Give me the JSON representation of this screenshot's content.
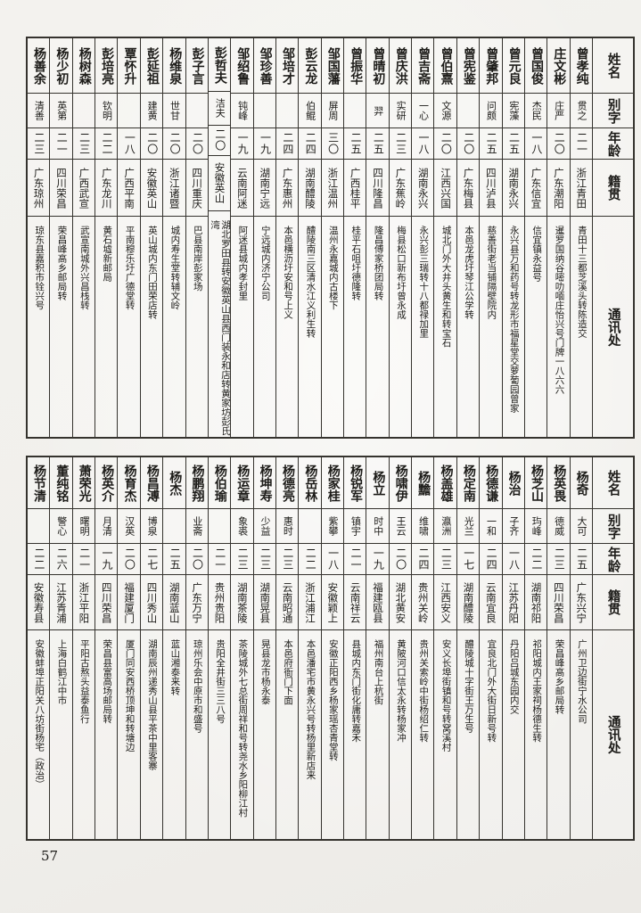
{
  "colors": {
    "paper": "#f2f1ed",
    "ink": "#1d1c19",
    "table_line": "#35332e"
  },
  "page": {
    "number": "57"
  },
  "headers": [
    "姓名",
    "别字",
    "年龄",
    "籍贯",
    "通讯处"
  ],
  "tables": [
    {
      "entries": [
        {
          "name": "曾孝纯",
          "zi": "贯之",
          "age": "二一",
          "native": "浙江青田",
          "addr": "青田十三都芝溪头转陈造交"
        },
        {
          "name": "庄文彬",
          "zi": "庄严",
          "age": "二〇",
          "native": "广东潮阳",
          "addr": "暹罗国纳谷嘧叻喕庄怡兴号门牌一八六六"
        },
        {
          "name": "曾国俊",
          "zi": "杰民",
          "age": "一八",
          "native": "广东信宜",
          "addr": "信宜镇永益号"
        },
        {
          "name": "曾元良",
          "zi": "宪藻",
          "age": "二五",
          "native": "湖南永兴",
          "addr": "永兴县万和药号转龙形市福星堂交萝葡园曾家"
        },
        {
          "name": "曾肇邦",
          "zi": "问颇",
          "age": "二五",
          "native": "四川泸县",
          "addr": "慈善街老当铺隔壁院内"
        },
        {
          "name": "曾宪鉴",
          "zi": "",
          "age": "二〇",
          "native": "广东梅县",
          "addr": "本邑龙虎圩琴江公学转"
        },
        {
          "name": "曾伯熹",
          "zi": "文源",
          "age": "二〇",
          "native": "江西兴国",
          "addr": "城北门外大井头黄生和转宝石"
        },
        {
          "name": "曾吉斋",
          "zi": "一心",
          "age": "一八",
          "native": "湖南永兴",
          "addr": "永兴彭三瑞转十八都禄加里"
        },
        {
          "name": "曾庆洪",
          "zi": "实研",
          "age": "二三",
          "native": "广东蕉岭",
          "addr": "梅县松口新布圩曾永成"
        },
        {
          "name": "曾晴初",
          "zi": "羿",
          "age": "二五",
          "native": "四川隆昌",
          "addr": "隆昌傅家桥团局转"
        },
        {
          "name": "曾振华",
          "zi": "",
          "age": "二五",
          "native": "广西桂平",
          "addr": "桂平石咀圩德隆转"
        },
        {
          "name": "邹国藩",
          "zi": "屏周",
          "age": "三〇",
          "native": "浙江温州",
          "addr": "温州永嘉城内古楼下"
        },
        {
          "name": "彭云龙",
          "zi": "伯鲲",
          "age": "二四",
          "native": "湖南醴陵",
          "addr": "醴陵南三区清水江义利生转"
        },
        {
          "name": "邹培才",
          "zi": "",
          "age": "二四",
          "native": "广东惠州",
          "addr": "本邑横沥圩安和号上义"
        },
        {
          "name": "邹珍善",
          "zi": "",
          "age": "一九",
          "native": "湖南宁远",
          "addr": "宁远城内济宁公司"
        },
        {
          "name": "邹绍鲁",
          "zi": "钝峰",
          "age": "一九",
          "native": "云南阿迷",
          "addr": "阿迷县城内孝封里"
        },
        {
          "name": "彭哲夫",
          "zi": "洁夫",
          "age": "二〇",
          "native": "安徽英山",
          "addr": "湖北罗田县转安徽英山县西门装永和店转黄家坊彭氏湾"
        },
        {
          "name": "彭子言",
          "zi": "",
          "age": "二〇",
          "native": "四川重庆",
          "addr": "巴县南岸彭家场"
        },
        {
          "name": "杨维泉",
          "zi": "世甘",
          "age": "二〇",
          "native": "浙江诸暨",
          "addr": "城内寿生堂转辅文岭"
        },
        {
          "name": "彭延祖",
          "zi": "建黄",
          "age": "二〇",
          "native": "安徽英山",
          "addr": "英山城内东门田荣店转"
        },
        {
          "name": "覃怀升",
          "zi": "",
          "age": "一八",
          "native": "广西平南",
          "addr": "平南穆乐圩广德堂转"
        },
        {
          "name": "彭培亮",
          "zi": "钦明",
          "age": "二二",
          "native": "广东龙川",
          "addr": "黄石墟新邮局"
        },
        {
          "name": "杨树森",
          "zi": "",
          "age": "二三",
          "native": "广西武宣",
          "addr": "武宣南城外兴昌栈转"
        },
        {
          "name": "杨少初",
          "zi": "英第",
          "age": "二一",
          "native": "四川荣昌",
          "addr": "荣昌峰高乡邮局转"
        },
        {
          "name": "杨善余",
          "zi": "清善",
          "age": "二三",
          "native": "广东琼州",
          "addr": "琼东县嘉积市铨兴号"
        }
      ]
    },
    {
      "entries": [
        {
          "name": "杨奇",
          "zi": "大可",
          "age": "二五",
          "native": "广东兴宁",
          "addr": "广州卫边街宁水公司"
        },
        {
          "name": "杨英畏",
          "zi": "德威",
          "age": "二三",
          "native": "四川荣昌",
          "addr": "荣昌峰高乡邮局转"
        },
        {
          "name": "杨芝山",
          "zi": "玙峰",
          "age": "二二",
          "native": "湖南祁阳",
          "addr": "祁阳城内王家祠杨德生转"
        },
        {
          "name": "杨治",
          "zi": "子齐",
          "age": "一八",
          "native": "江苏丹阳",
          "addr": "丹阳吕城东园内交"
        },
        {
          "name": "杨德谦",
          "zi": "一和",
          "age": "二四",
          "native": "云南宜良",
          "addr": "宜良北门外大街日新号转"
        },
        {
          "name": "杨定南",
          "zi": "光兰",
          "age": "一七",
          "native": "湖南醴陵",
          "addr": "醴陵城十字街王万生号"
        },
        {
          "name": "杨盖雄",
          "zi": "瀛洲",
          "age": "二三",
          "native": "江西安义",
          "addr": "安义长埠街镇和号转窝溪村"
        },
        {
          "name": "杨黵",
          "zi": "维啸",
          "age": "二四",
          "native": "贵州关岭",
          "addr": "贵州关索岭中街杨绍仁转"
        },
        {
          "name": "杨啸伊",
          "zi": "王云",
          "age": "二〇",
          "native": "湖北黄安",
          "addr": "黄陂河口信太永转杨家冲"
        },
        {
          "name": "杨立",
          "zi": "时中",
          "age": "一九",
          "native": "福建瓯县",
          "addr": "福州南台上杭街"
        },
        {
          "name": "杨锐军",
          "zi": "镇宇",
          "age": "二一",
          "native": "云南祥云",
          "addr": "县城内东门街化庸转嘉禾"
        },
        {
          "name": "杨家桂",
          "zi": "紫攀",
          "age": "一八",
          "native": "安徽颖上",
          "addr": "安徽正阳西乡杨家瑶杏青堂转"
        },
        {
          "name": "杨岳林",
          "zi": "",
          "age": "二二",
          "native": "浙江浦江",
          "addr": "本邑潘宅市黄永兴号转杨里新店来"
        },
        {
          "name": "杨德亮",
          "zi": "惠时",
          "age": "二三",
          "native": "云南昭通",
          "addr": "本邑府衙门下面"
        },
        {
          "name": "杨坤寿",
          "zi": "少益",
          "age": "二三",
          "native": "湖南晃县",
          "addr": "晃县龙市杨永泰"
        },
        {
          "name": "杨运章",
          "zi": "象裘",
          "age": "二三",
          "native": "湖南茶陵",
          "addr": "茶陵城外七总街周祥和号转尧水乡阳柳江村"
        },
        {
          "name": "杨伯瑜",
          "zi": "",
          "age": "二一",
          "native": "贵州贵阳",
          "addr": "贵阳全井街三三八号"
        },
        {
          "name": "杨鹏翔",
          "zi": "业斋",
          "age": "二〇",
          "native": "广东万宁",
          "addr": "琼州乐会中原市和盛号"
        },
        {
          "name": "杨杰",
          "zi": "",
          "age": "二五",
          "native": "湖南蓝山",
          "addr": "蓝山湘泰来转"
        },
        {
          "name": "杨昌溥",
          "zi": "博泉",
          "age": "二七",
          "native": "四川秀山",
          "addr": "湖南辰州递秀山县平茶中里客寨"
        },
        {
          "name": "杨育杰",
          "zi": "汉英",
          "age": "二〇",
          "native": "福建厦门",
          "addr": "厦门同安西桥顶坤和转塘边"
        },
        {
          "name": "杨英介",
          "zi": "月清",
          "age": "一九",
          "native": "四川荣昌",
          "addr": "荣昌县富高场邮局转"
        },
        {
          "name": "萧荣光",
          "zi": "曙明",
          "age": "二一",
          "native": "浙江平阳",
          "addr": "平阳古熬头益泰鱼行"
        },
        {
          "name": "董纯铭",
          "zi": "警心",
          "age": "二六",
          "native": "江苏青浦",
          "addr": "上海白鹤江中市"
        },
        {
          "name": "杨节清",
          "zi": "",
          "age": "二二",
          "native": "安徽寿县",
          "addr": "安徽蚌埠正阳关八坊街杨宅（政治）"
        }
      ]
    }
  ]
}
